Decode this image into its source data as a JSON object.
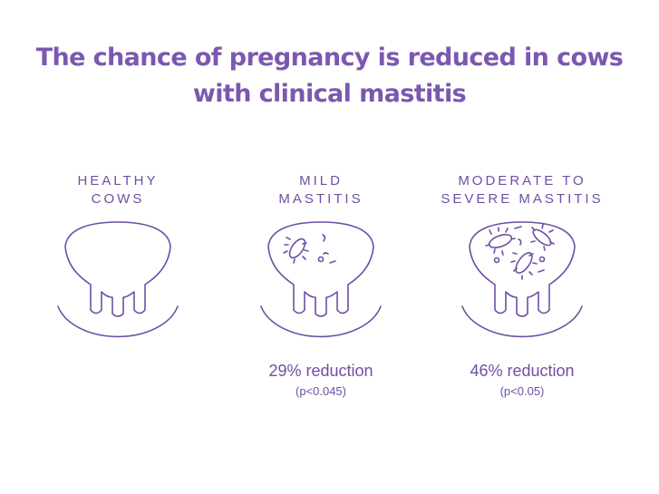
{
  "title": {
    "line1": "The chance of pregnancy is reduced in cows",
    "line2": "with clinical mastitis"
  },
  "groups": [
    {
      "label_line1": "HEALTHY",
      "label_line2": "COWS",
      "icon": "healthy-udder-icon",
      "reduction": "",
      "pvalue": ""
    },
    {
      "label_line1": "MILD",
      "label_line2": "MASTITIS",
      "icon": "mild-mastitis-udder-icon",
      "reduction": "29% reduction",
      "pvalue": "(p<0.045)"
    },
    {
      "label_line1": "MODERATE TO",
      "label_line2": "SEVERE MASTITIS",
      "icon": "severe-mastitis-udder-icon",
      "reduction": "46% reduction",
      "pvalue": "(p<0.05)"
    }
  ],
  "colors": {
    "accent": "#6f4fa3",
    "title": "#7b58b0",
    "background": "#ffffff"
  }
}
